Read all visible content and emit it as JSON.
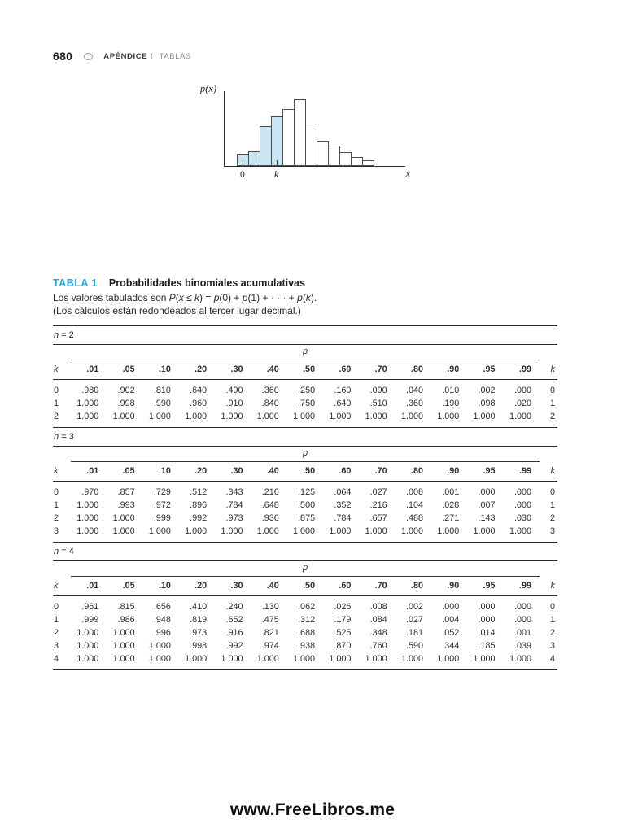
{
  "header": {
    "page_number": "680",
    "section": "APÉNDICE I",
    "subsection": "TABLAS"
  },
  "chart": {
    "ylabel": "p(x)",
    "xlabel": "x",
    "tick_zero": "0",
    "tick_k": "k",
    "bar_fill_highlight": "#cbe5f5",
    "bar_outline": "#4d4d4d"
  },
  "chart_data": {
    "type": "bar",
    "title": "",
    "xlabel": "x",
    "ylabel": "p(x)",
    "x": [
      0,
      1,
      2,
      3,
      4,
      5,
      6,
      7,
      8,
      9,
      10,
      11
    ],
    "values": [
      0.18,
      0.22,
      0.6,
      0.74,
      0.85,
      1.0,
      0.63,
      0.38,
      0.3,
      0.21,
      0.13,
      0.08
    ],
    "ylim": [
      0,
      1
    ],
    "grid": false,
    "highlighted_bars": 4,
    "tick_labels": [
      {
        "bar_index": 0,
        "label": "0"
      },
      {
        "bar_index": 3,
        "label": "k"
      }
    ],
    "note": "schematic binomial distribution; bars for x ≤ k shaded blue"
  },
  "intro": {
    "label": "TABLA 1",
    "title": "Probabilidades binomiales acumulativas",
    "formula_pre": "Los valores tabulados son ",
    "formula_segments": [
      [
        "P",
        true
      ],
      [
        "(",
        false
      ],
      [
        "x",
        true
      ],
      [
        " ≤ ",
        false
      ],
      [
        "k",
        true
      ],
      [
        ") = ",
        false
      ],
      [
        "p",
        true
      ],
      [
        "(0) + ",
        false
      ],
      [
        "p",
        true
      ],
      [
        "(1) + · · · + ",
        false
      ],
      [
        "p",
        true
      ],
      [
        "(",
        false
      ],
      [
        "k",
        true
      ],
      [
        ").",
        false
      ]
    ],
    "note": "(Los cálculos están redondeados al tercer lugar decimal.)"
  },
  "tables": [
    {
      "n_var": "n",
      "n_value": " = 2",
      "p_header": "p",
      "k_header": "k",
      "col_headers": [
        ".01",
        ".05",
        ".10",
        ".20",
        ".30",
        ".40",
        ".50",
        ".60",
        ".70",
        ".80",
        ".90",
        ".95",
        ".99"
      ],
      "rows": [
        {
          "k": "0",
          "values": [
            ".980",
            ".902",
            ".810",
            ".640",
            ".490",
            ".360",
            ".250",
            ".160",
            ".090",
            ".040",
            ".010",
            ".002",
            ".000"
          ]
        },
        {
          "k": "1",
          "values": [
            "1.000",
            ".998",
            ".990",
            ".960",
            ".910",
            ".840",
            ".750",
            ".640",
            ".510",
            ".360",
            ".190",
            ".098",
            ".020"
          ]
        },
        {
          "k": "2",
          "values": [
            "1.000",
            "1.000",
            "1.000",
            "1.000",
            "1.000",
            "1.000",
            "1.000",
            "1.000",
            "1.000",
            "1.000",
            "1.000",
            "1.000",
            "1.000"
          ]
        }
      ]
    },
    {
      "n_var": "n",
      "n_value": " = 3",
      "p_header": "p",
      "k_header": "k",
      "col_headers": [
        ".01",
        ".05",
        ".10",
        ".20",
        ".30",
        ".40",
        ".50",
        ".60",
        ".70",
        ".80",
        ".90",
        ".95",
        ".99"
      ],
      "rows": [
        {
          "k": "0",
          "values": [
            ".970",
            ".857",
            ".729",
            ".512",
            ".343",
            ".216",
            ".125",
            ".064",
            ".027",
            ".008",
            ".001",
            ".000",
            ".000"
          ]
        },
        {
          "k": "1",
          "values": [
            "1.000",
            ".993",
            ".972",
            ".896",
            ".784",
            ".648",
            ".500",
            ".352",
            ".216",
            ".104",
            ".028",
            ".007",
            ".000"
          ]
        },
        {
          "k": "2",
          "values": [
            "1.000",
            "1.000",
            ".999",
            ".992",
            ".973",
            ".936",
            ".875",
            ".784",
            ".657",
            ".488",
            ".271",
            ".143",
            ".030"
          ]
        },
        {
          "k": "3",
          "values": [
            "1.000",
            "1.000",
            "1.000",
            "1.000",
            "1.000",
            "1.000",
            "1.000",
            "1.000",
            "1.000",
            "1.000",
            "1.000",
            "1.000",
            "1.000"
          ]
        }
      ]
    },
    {
      "n_var": "n",
      "n_value": " = 4",
      "p_header": "p",
      "k_header": "k",
      "col_headers": [
        ".01",
        ".05",
        ".10",
        ".20",
        ".30",
        ".40",
        ".50",
        ".60",
        ".70",
        ".80",
        ".90",
        ".95",
        ".99"
      ],
      "rows": [
        {
          "k": "0",
          "values": [
            ".961",
            ".815",
            ".656",
            ".410",
            ".240",
            ".130",
            ".062",
            ".026",
            ".008",
            ".002",
            ".000",
            ".000",
            ".000"
          ]
        },
        {
          "k": "1",
          "values": [
            ".999",
            ".986",
            ".948",
            ".819",
            ".652",
            ".475",
            ".312",
            ".179",
            ".084",
            ".027",
            ".004",
            ".000",
            ".000"
          ]
        },
        {
          "k": "2",
          "values": [
            "1.000",
            "1.000",
            ".996",
            ".973",
            ".916",
            ".821",
            ".688",
            ".525",
            ".348",
            ".181",
            ".052",
            ".014",
            ".001"
          ]
        },
        {
          "k": "3",
          "values": [
            "1.000",
            "1.000",
            "1.000",
            ".998",
            ".992",
            ".974",
            ".938",
            ".870",
            ".760",
            ".590",
            ".344",
            ".185",
            ".039"
          ]
        },
        {
          "k": "4",
          "values": [
            "1.000",
            "1.000",
            "1.000",
            "1.000",
            "1.000",
            "1.000",
            "1.000",
            "1.000",
            "1.000",
            "1.000",
            "1.000",
            "1.000",
            "1.000"
          ]
        }
      ]
    }
  ],
  "footer": {
    "url": "www.FreeLibros.me"
  }
}
